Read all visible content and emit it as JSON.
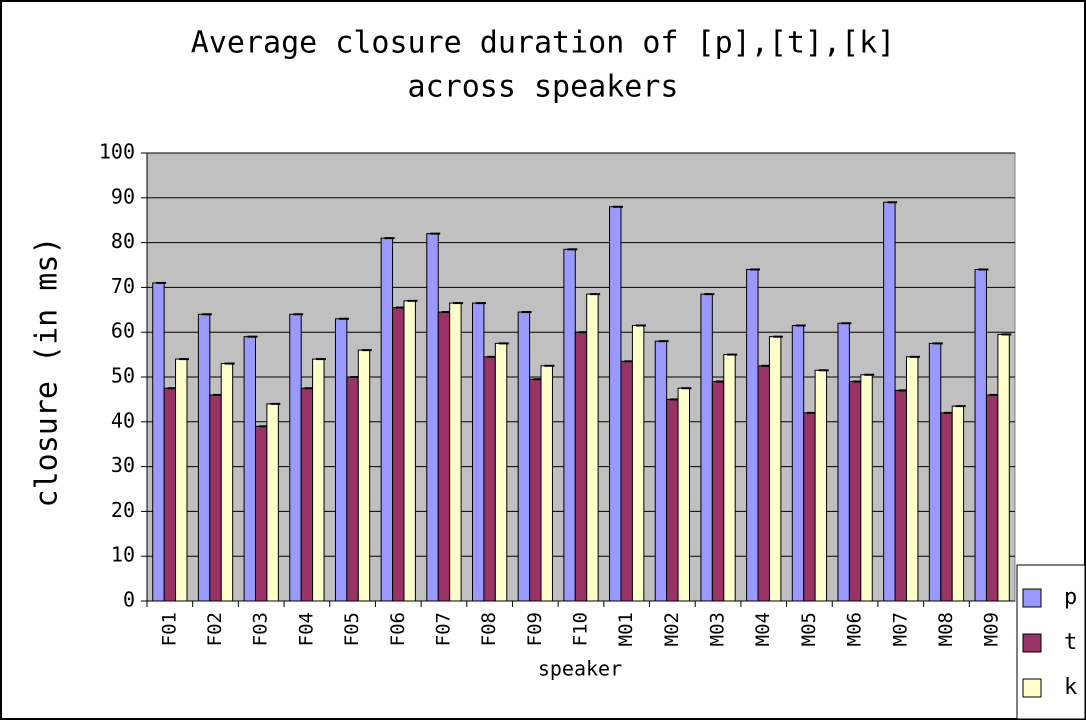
{
  "chart_data": {
    "type": "bar",
    "title_lines": [
      "Average closure duration of [p],[t],[k]",
      "across speakers"
    ],
    "x_label": "speaker",
    "y_label": "closure (in ms)",
    "categories": [
      "F01",
      "F02",
      "F03",
      "F04",
      "F05",
      "F06",
      "F07",
      "F08",
      "F09",
      "F10",
      "M01",
      "M02",
      "M03",
      "M04",
      "M05",
      "M06",
      "M07",
      "M08",
      "M09"
    ],
    "series": [
      {
        "name": "p",
        "color": "#9999ff",
        "values": [
          71,
          64,
          59,
          64,
          63,
          81,
          82,
          66.5,
          64.5,
          78.5,
          88,
          58,
          68.5,
          74,
          61.5,
          62,
          89,
          57.5,
          74
        ]
      },
      {
        "name": "t",
        "color": "#993366",
        "values": [
          47.5,
          46,
          39,
          47.5,
          50,
          65.5,
          64.5,
          54.5,
          49.5,
          60,
          53.5,
          45,
          49,
          52.5,
          42,
          49,
          47,
          42,
          46
        ]
      },
      {
        "name": "k",
        "color": "#ffffcc",
        "values": [
          54,
          53,
          44,
          54,
          56,
          67,
          66.5,
          57.5,
          52.5,
          68.5,
          61.5,
          47.5,
          55,
          59,
          51.5,
          50.5,
          54.5,
          43.5,
          59.5
        ]
      }
    ],
    "ylim": [
      0,
      100
    ],
    "yticks": [
      0,
      10,
      20,
      30,
      40,
      50,
      60,
      70,
      80,
      90,
      100
    ],
    "grid": true,
    "plot_background": "#c0c0c0",
    "legend": "right"
  }
}
